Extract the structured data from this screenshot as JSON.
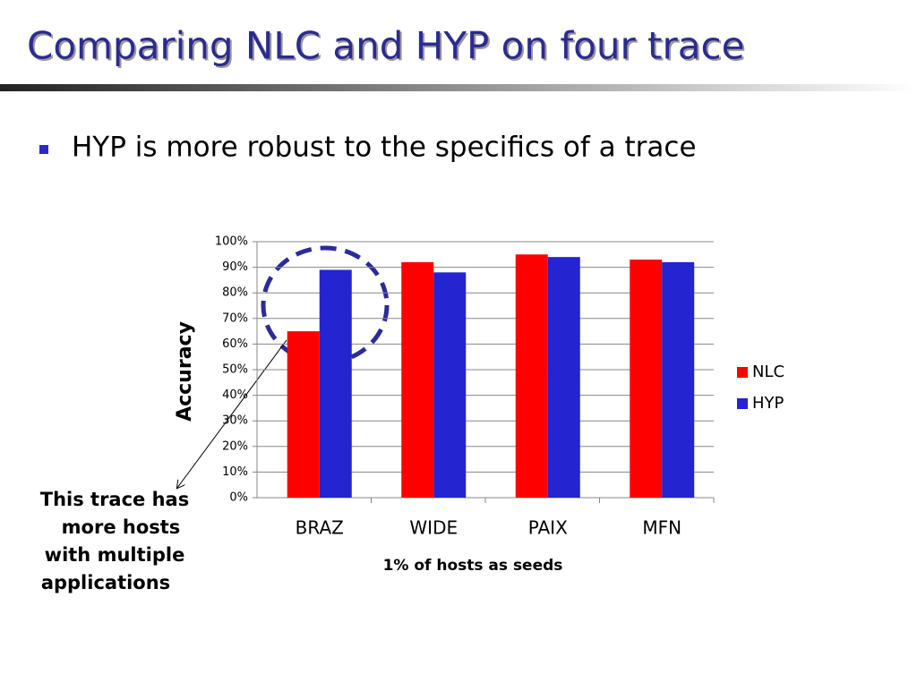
{
  "slide": {
    "title": "Comparing NLC and HYP on four trace",
    "bullet": "HYP is more robust to the specifics of a trace"
  },
  "chart_data": {
    "type": "bar",
    "y_axis_label": "Accuracy",
    "x_axis_label": "1% of hosts as seeds",
    "categories": [
      "BRAZ",
      "WIDE",
      "PAIX",
      "MFN"
    ],
    "series": [
      {
        "name": "NLC",
        "color": "#ff0000",
        "values": [
          65,
          92,
          95,
          93
        ]
      },
      {
        "name": "HYP",
        "color": "#2424d0",
        "values": [
          89,
          88,
          94,
          92
        ]
      }
    ],
    "ylim": [
      0,
      100
    ],
    "yticks": [
      {
        "value": 0,
        "label": "0%"
      },
      {
        "value": 10,
        "label": "10%"
      },
      {
        "value": 20,
        "label": "20%"
      },
      {
        "value": 30,
        "label": "30%"
      },
      {
        "value": 40,
        "label": "40%"
      },
      {
        "value": 50,
        "label": "50%"
      },
      {
        "value": 60,
        "label": "60%"
      },
      {
        "value": 70,
        "label": "70%"
      },
      {
        "value": 80,
        "label": "80%"
      },
      {
        "value": 90,
        "label": "90%"
      },
      {
        "value": 100,
        "label": "100%"
      }
    ],
    "grid": true,
    "legend": "right",
    "annotation": [
      "This trace has",
      "more hosts",
      "with multiple",
      "applications"
    ]
  }
}
